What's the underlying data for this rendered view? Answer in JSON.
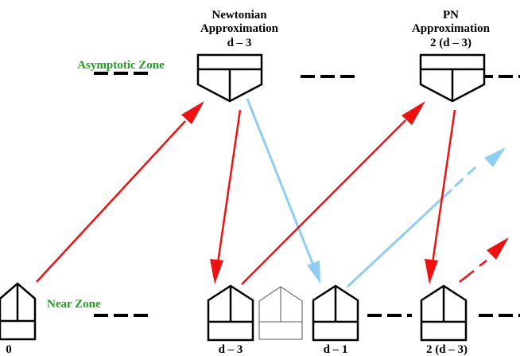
{
  "colors": {
    "zone_label": "#1fa01f",
    "red_arrow": "#ee1111",
    "blue_arrow": "#8fcdf2",
    "ink": "#000000",
    "faint": "#555555"
  },
  "zones": {
    "asymptotic": "Asymptotic Zone",
    "near": "Near Zone"
  },
  "headers": {
    "newtonian": {
      "line1": "Newtonian",
      "line2": "Approximation",
      "order": "d – 3"
    },
    "pn": {
      "line1": "PN",
      "line2": "Approximation",
      "order": "2 (d – 3)"
    }
  },
  "bottom_labels": {
    "zero": "0",
    "d3": "d – 3",
    "d1": "d – 1",
    "two_d3": "2 (d – 3)"
  }
}
